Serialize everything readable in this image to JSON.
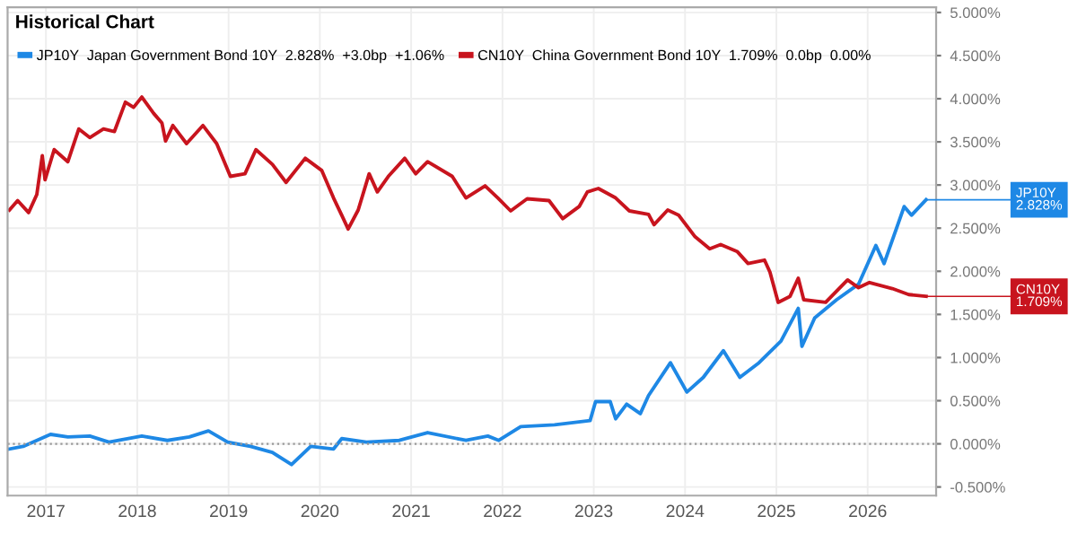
{
  "chart_data": {
    "type": "line",
    "title": "Historical Chart",
    "x": [
      2016.6,
      2016.69,
      2016.81,
      2016.9,
      2016.96,
      2016.99,
      2017.09,
      2017.24,
      2017.36,
      2017.48,
      2017.63,
      2017.75,
      2017.87,
      2017.96,
      2018.05,
      2018.18,
      2018.27,
      2018.31,
      2018.39,
      2018.54,
      2018.72,
      2018.87,
      2019.02,
      2019.18,
      2019.3,
      2019.48,
      2019.63,
      2019.84,
      2020.02,
      2020.15,
      2020.24,
      2020.31,
      2020.42,
      2020.54,
      2020.63,
      2020.75,
      2020.93,
      2021.05,
      2021.18,
      2021.45,
      2021.6,
      2021.81,
      2021.95,
      2022.09,
      2022.27,
      2022.51,
      2022.66,
      2022.84,
      2022.93,
      2023.05,
      2023.24,
      2023.39,
      2023.6,
      2023.66,
      2023.81,
      2023.93,
      2024.11,
      2024.27,
      2024.39,
      2024.57,
      2024.69,
      2024.87,
      2024.93,
      2025.02,
      2025.15,
      2025.24,
      2025.3,
      2025.54,
      2025.78,
      2025.9,
      2026.02,
      2026.27,
      2026.45,
      2026.64
    ],
    "series": [
      {
        "name": "JP10Y  Japan Government Bond 10Y  2.828%  +3.0bp  +1.06%",
        "color": "#1e88e5",
        "x": [
          2016.6,
          2016.75,
          2016.9,
          2017.05,
          2017.24,
          2017.48,
          2017.69,
          2018.05,
          2018.33,
          2018.57,
          2018.78,
          2018.99,
          2019.24,
          2019.48,
          2019.69,
          2019.9,
          2020.15,
          2020.24,
          2020.51,
          2020.87,
          2021.18,
          2021.6,
          2021.84,
          2021.96,
          2022.2,
          2022.57,
          2022.96,
          2023.02,
          2023.18,
          2023.24,
          2023.36,
          2023.51,
          2023.6,
          2023.84,
          2024.02,
          2024.2,
          2024.42,
          2024.6,
          2024.81,
          2025.05,
          2025.24,
          2025.28,
          2025.42,
          2025.66,
          2025.9,
          2026.09,
          2026.18,
          2026.4,
          2026.48,
          2026.64
        ],
        "values": [
          -0.06,
          -0.03,
          0.04,
          0.11,
          0.08,
          0.09,
          0.02,
          0.09,
          0.04,
          0.08,
          0.15,
          0.02,
          -0.03,
          -0.1,
          -0.24,
          -0.03,
          -0.06,
          0.06,
          0.02,
          0.04,
          0.13,
          0.04,
          0.09,
          0.04,
          0.2,
          0.22,
          0.27,
          0.49,
          0.49,
          0.29,
          0.46,
          0.35,
          0.56,
          0.94,
          0.6,
          0.77,
          1.08,
          0.77,
          0.94,
          1.19,
          1.57,
          1.13,
          1.46,
          1.67,
          1.85,
          2.3,
          2.09,
          2.75,
          2.65,
          2.83
        ]
      },
      {
        "name": "CN10Y  China Government Bond 10Y  1.709%  0.0bp  0.00%",
        "color": "#c8141e",
        "values": [
          2.71,
          2.82,
          2.68,
          2.89,
          3.34,
          3.06,
          3.41,
          3.27,
          3.65,
          3.55,
          3.65,
          3.62,
          3.96,
          3.9,
          4.02,
          3.83,
          3.72,
          3.51,
          3.69,
          3.48,
          3.69,
          3.48,
          3.1,
          3.13,
          3.41,
          3.24,
          3.03,
          3.31,
          3.17,
          2.85,
          2.65,
          2.49,
          2.71,
          3.13,
          2.92,
          3.1,
          3.31,
          3.13,
          3.27,
          3.1,
          2.85,
          2.99,
          2.85,
          2.7,
          2.84,
          2.82,
          2.61,
          2.75,
          2.92,
          2.96,
          2.85,
          2.7,
          2.66,
          2.54,
          2.71,
          2.65,
          2.4,
          2.26,
          2.31,
          2.23,
          2.09,
          2.13,
          1.99,
          1.64,
          1.71,
          1.92,
          1.67,
          1.64,
          1.9,
          1.81,
          1.87,
          1.8,
          1.73,
          1.71
        ]
      }
    ],
    "annotations": [
      {
        "text": "JP10Y\n2.828%",
        "x": 2026.64,
        "y": 2.828
      },
      {
        "text": "CN10Y\n1.709%",
        "x": 2026.64,
        "y": 1.709
      }
    ],
    "xlim": [
      2016.58,
      2026.75
    ],
    "xticks": [
      2017,
      2018,
      2019,
      2020,
      2021,
      2022,
      2023,
      2024,
      2025,
      2026
    ],
    "ylim": [
      -0.6,
      5.06
    ],
    "yticks": [
      {
        "value": -0.5,
        "label": "-0.500%"
      },
      {
        "value": 0,
        "label": "0.000%"
      },
      {
        "value": 0.5,
        "label": "0.500%"
      },
      {
        "value": 1,
        "label": "1.000%"
      },
      {
        "value": 1.5,
        "label": "1.500%"
      },
      {
        "value": 2,
        "label": "2.000%"
      },
      {
        "value": 2.5,
        "label": "2.500%"
      },
      {
        "value": 3,
        "label": "3.000%"
      },
      {
        "value": 3.5,
        "label": "3.500%"
      },
      {
        "value": 4,
        "label": "4.000%"
      },
      {
        "value": 4.5,
        "label": "4.500%"
      },
      {
        "value": 5,
        "label": "5.000%"
      }
    ],
    "ref_lines": [
      {
        "axis": "y",
        "value": 0,
        "color": "#999999",
        "line_style": "dotted"
      }
    ],
    "grid": true,
    "legend": "top left",
    "marker": "none",
    "line_style": "solid"
  }
}
